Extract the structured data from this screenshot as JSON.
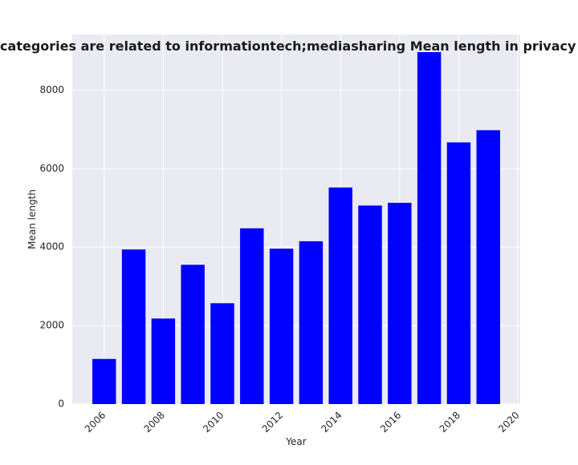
{
  "chart_data": {
    "type": "bar",
    "title": "Year-wise when categories are related to informationtech;mediasharing Mean length in privacy policies by Year",
    "xlabel": "Year",
    "ylabel": "Mean length",
    "x": [
      2006,
      2007,
      2008,
      2009,
      2010,
      2011,
      2012,
      2013,
      2014,
      2015,
      2016,
      2017,
      2018,
      2019
    ],
    "values": [
      1150,
      3940,
      2180,
      3550,
      2570,
      4480,
      3960,
      4150,
      5520,
      5060,
      5130,
      8970,
      6670,
      6980
    ],
    "xlim": [
      2004.92,
      2020.08
    ],
    "ylim": [
      0,
      9420
    ],
    "xticks": [
      2006,
      2008,
      2010,
      2012,
      2014,
      2016,
      2018,
      2020
    ],
    "yticks": [
      0,
      2000,
      4000,
      6000,
      8000
    ],
    "grid": true,
    "bar_color": "#0000ff",
    "background_color": "#eaeaf2",
    "grid_color": "#ffffff"
  }
}
